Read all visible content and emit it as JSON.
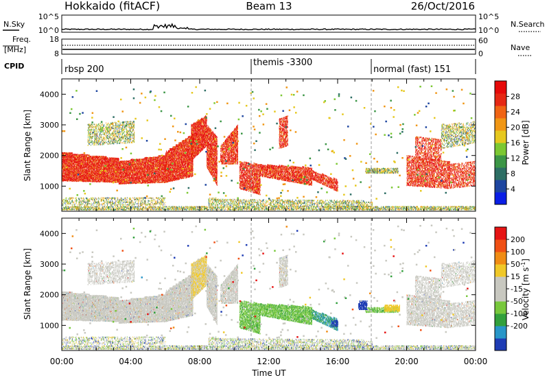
{
  "header": {
    "title": "Hokkaido (fitACF)",
    "beam": "Beam 13",
    "date": "26/Oct/2016"
  },
  "noise_panel": {
    "left_label": "N.Sky",
    "left_ticks": [
      "10^5",
      "10^0"
    ],
    "right_ticks": [
      "10^5",
      "10^0"
    ],
    "right_label": "N.Search"
  },
  "freq_panel": {
    "left_label_1": "Freq.",
    "left_label_2": "[MHz]",
    "left_ticks": [
      "18",
      "8"
    ],
    "right_ticks": [
      "60",
      "0"
    ],
    "right_label": "Nave"
  },
  "cpid": {
    "label": "CPID",
    "segments": [
      {
        "name": "rbsp 200",
        "start_hour": 0
      },
      {
        "name": "themis -3300",
        "start_hour": 11
      },
      {
        "name": "normal (fast) 151",
        "start_hour": 18
      }
    ]
  },
  "chart_data": [
    {
      "type": "heatmap",
      "parameter": "Power",
      "ylabel": "Slant Range [km]",
      "ylim": [
        180,
        4500
      ],
      "yticks": [
        "1000",
        "2000",
        "3000",
        "4000"
      ],
      "xlim_hours": [
        0,
        24
      ],
      "colorbar": {
        "label": "Power [dB]",
        "ticks": [
          "4",
          "8",
          "12",
          "16",
          "20",
          "24",
          "28"
        ],
        "range": [
          0,
          32
        ],
        "colors": [
          "#0a1ee6",
          "#1e46a0",
          "#2d6e64",
          "#3c9646",
          "#7cc832",
          "#e6c81e",
          "#f09614",
          "#f06414",
          "#e62814",
          "#e60a0a"
        ]
      }
    },
    {
      "type": "heatmap",
      "parameter": "Velocity",
      "ylabel": "Slant Range [km]",
      "ylim": [
        180,
        4500
      ],
      "yticks": [
        "1000",
        "2000",
        "3000",
        "4000"
      ],
      "xlim_hours": [
        0,
        24
      ],
      "colorbar": {
        "label_main": "Velocity",
        "label_unit": "[m s",
        "label_exp": "-1",
        "label_close": "]",
        "ticks": [
          "200",
          "100",
          "50",
          "15",
          "-15",
          "-50",
          "-100",
          "-200"
        ],
        "colors": [
          "#1e3cb4",
          "#2896c8",
          "#32a03c",
          "#78c83c",
          "#c8c8c0",
          "#c8c8c0",
          "#f0c828",
          "#f08c14",
          "#f05014",
          "#e61414"
        ]
      }
    }
  ],
  "xaxis": {
    "label": "Time UT",
    "ticks": [
      "00:00",
      "04:00",
      "08:00",
      "12:00",
      "16:00",
      "20:00",
      "00:00"
    ]
  }
}
